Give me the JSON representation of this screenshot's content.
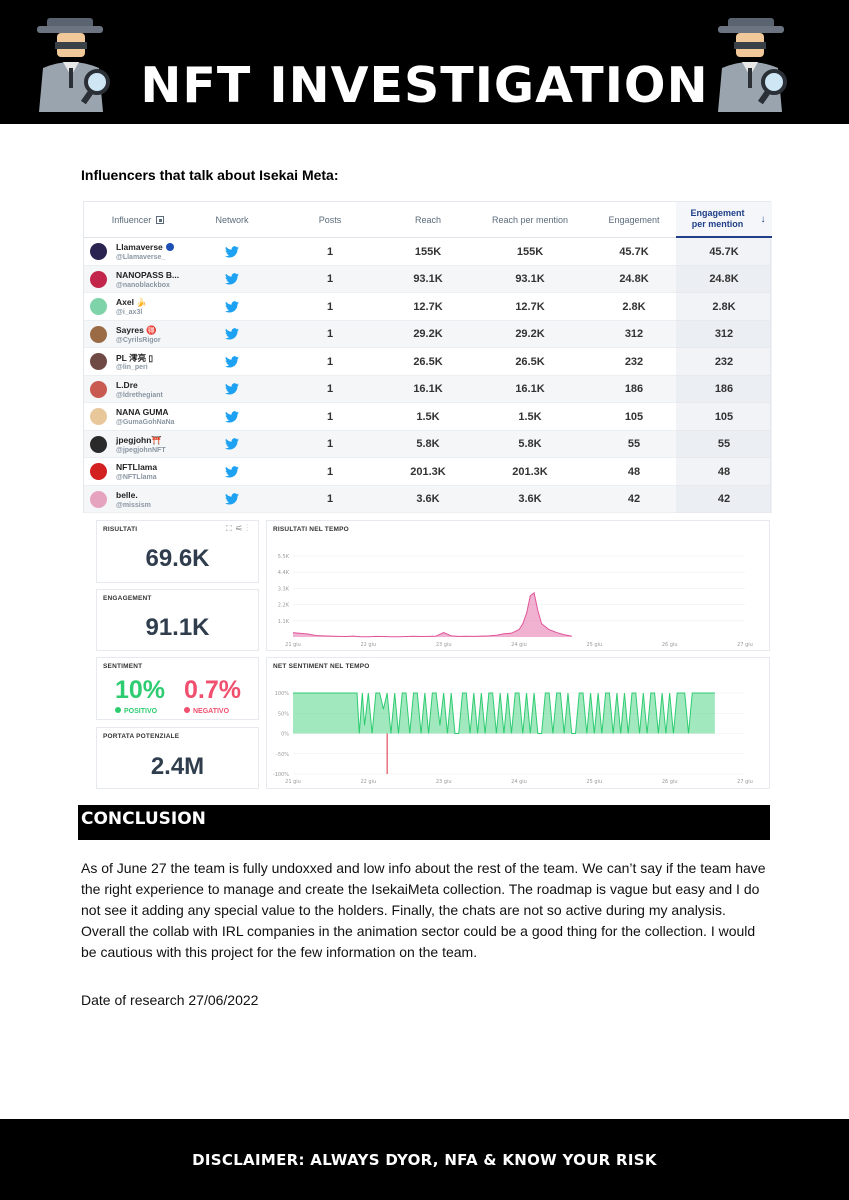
{
  "header": {
    "title": "NFT INVESTIGATION"
  },
  "section_heading": "Influencers that talk about Isekai Meta:",
  "influencers": {
    "columns": [
      "Influencer",
      "Network",
      "Posts",
      "Reach",
      "Reach per mention",
      "Engagement",
      "Engagement per mention"
    ],
    "rows": [
      {
        "name": "Llamaverse",
        "handle": "@Llamaverse_",
        "posts": "1",
        "reach": "155K",
        "reach_per_mention": "155K",
        "engagement": "45.7K",
        "engagement_per_mention": "45.7K",
        "avatar_color": "#2b2350"
      },
      {
        "name": "NANOPASS B...",
        "handle": "@nanoblackbox",
        "posts": "1",
        "reach": "93.1K",
        "reach_per_mention": "93.1K",
        "engagement": "24.8K",
        "engagement_per_mention": "24.8K",
        "avatar_color": "#c2264a"
      },
      {
        "name": "Axel 🍌",
        "handle": "@i_ax3l",
        "posts": "1",
        "reach": "12.7K",
        "reach_per_mention": "12.7K",
        "engagement": "2.8K",
        "engagement_per_mention": "2.8K",
        "avatar_color": "#7fd3a8"
      },
      {
        "name": "Sayres 🉐",
        "handle": "@CyrilsRigor",
        "posts": "1",
        "reach": "29.2K",
        "reach_per_mention": "29.2K",
        "engagement": "312",
        "engagement_per_mention": "312",
        "avatar_color": "#9a6b45"
      },
      {
        "name": "PL 澪亮 ▯",
        "handle": "@lin_peri",
        "posts": "1",
        "reach": "26.5K",
        "reach_per_mention": "26.5K",
        "engagement": "232",
        "engagement_per_mention": "232",
        "avatar_color": "#6f4a44"
      },
      {
        "name": "L.Dre",
        "handle": "@ldrethegiant",
        "posts": "1",
        "reach": "16.1K",
        "reach_per_mention": "16.1K",
        "engagement": "186",
        "engagement_per_mention": "186",
        "avatar_color": "#c85a52"
      },
      {
        "name": "NANA GUMA",
        "handle": "@GumaGohNaNa",
        "posts": "1",
        "reach": "1.5K",
        "reach_per_mention": "1.5K",
        "engagement": "105",
        "engagement_per_mention": "105",
        "avatar_color": "#e8c79a"
      },
      {
        "name": "jpegjohn⛩️",
        "handle": "@jpegjohnNFT",
        "posts": "1",
        "reach": "5.8K",
        "reach_per_mention": "5.8K",
        "engagement": "55",
        "engagement_per_mention": "55",
        "avatar_color": "#2a2a2a"
      },
      {
        "name": "NFTLlama",
        "handle": "@NFTLlama",
        "posts": "1",
        "reach": "201.3K",
        "reach_per_mention": "201.3K",
        "engagement": "48",
        "engagement_per_mention": "48",
        "avatar_color": "#d32020"
      },
      {
        "name": "belle.",
        "handle": "@missism",
        "posts": "1",
        "reach": "3.6K",
        "reach_per_mention": "3.6K",
        "engagement": "42",
        "engagement_per_mention": "42",
        "avatar_color": "#e6a3c0"
      }
    ]
  },
  "dashboard": {
    "risultati": {
      "label": "RISULTATI",
      "value": "69.6K"
    },
    "engagement": {
      "label": "ENGAGEMENT",
      "value": "91.1K"
    },
    "sentiment": {
      "label": "SENTIMENT",
      "positive": "10%",
      "negative": "0.7%",
      "positive_label": "POSITIVO",
      "negative_label": "NEGATIVO"
    },
    "portata": {
      "label": "PORTATA POTENZIALE",
      "value": "2.4M"
    },
    "chart_titles": {
      "results_over_time": "RISULTATI NEL TEMPO",
      "net_sentiment_over_time": "NET SENTIMENT NEL TEMPO"
    }
  },
  "chart_data": [
    {
      "type": "area",
      "title": "RISULTATI NEL TEMPO",
      "y_ticks": [
        "5.5K",
        "4.4K",
        "3.3K",
        "2.2K",
        "1.1K"
      ],
      "ylim": [
        0,
        5500
      ],
      "x_ticks": [
        "21 giu",
        "22 giu",
        "23 giu",
        "24 giu",
        "25 giu",
        "26 giu",
        "27 giu"
      ],
      "xlim": [
        0,
        6
      ],
      "color": "#e0559a",
      "x": [
        0,
        0.1,
        0.2,
        0.3,
        0.4,
        0.5,
        0.6,
        0.7,
        0.8,
        0.9,
        1.0,
        1.1,
        1.2,
        1.3,
        1.4,
        1.5,
        1.6,
        1.7,
        1.8,
        1.9,
        2.0,
        2.1,
        2.2,
        2.3,
        2.4,
        2.5,
        2.6,
        2.7,
        2.8,
        2.9,
        3.0,
        3.05,
        3.1,
        3.15,
        3.2,
        3.25,
        3.3,
        3.4,
        3.5,
        3.6,
        3.7
      ],
      "y": [
        300,
        250,
        200,
        100,
        80,
        60,
        40,
        30,
        60,
        20,
        20,
        40,
        30,
        20,
        20,
        30,
        50,
        30,
        40,
        60,
        300,
        80,
        40,
        50,
        40,
        60,
        80,
        120,
        220,
        260,
        500,
        900,
        1600,
        2800,
        3000,
        1800,
        900,
        500,
        300,
        150,
        60
      ]
    },
    {
      "type": "area",
      "title": "NET SENTIMENT NEL TEMPO",
      "y_ticks": [
        "100%",
        "50%",
        "0%",
        "-50%",
        "-100%"
      ],
      "ylim": [
        -100,
        100
      ],
      "x_ticks": [
        "21 giu",
        "22 giu",
        "23 giu",
        "24 giu",
        "25 giu",
        "26 giu",
        "27 giu"
      ],
      "xlim": [
        0,
        6
      ],
      "color": "#2ecc71",
      "negative_color": "#e0505e",
      "x": [
        0,
        0.85,
        0.88,
        0.92,
        0.95,
        1.0,
        1.05,
        1.1,
        1.15,
        1.2,
        1.25,
        1.3,
        1.35,
        1.4,
        1.45,
        1.5,
        1.55,
        1.6,
        1.65,
        1.7,
        1.75,
        1.8,
        1.85,
        1.9,
        1.95,
        2.0,
        2.05,
        2.1,
        2.15,
        2.2,
        2.25,
        2.3,
        2.35,
        2.4,
        2.45,
        2.5,
        2.55,
        2.6,
        2.65,
        2.7,
        2.75,
        2.8,
        2.85,
        2.9,
        2.95,
        3.0,
        3.05,
        3.1,
        3.15,
        3.2,
        3.25,
        3.3,
        3.35,
        3.4,
        3.45,
        3.5,
        3.55,
        3.6,
        3.65,
        3.7,
        3.75,
        3.8,
        3.85,
        3.9,
        3.95,
        4.0,
        4.05,
        4.1,
        4.15,
        4.2,
        4.25,
        4.3,
        4.35,
        4.4,
        4.45,
        4.5,
        4.55,
        4.6,
        4.65,
        4.7,
        4.75,
        4.8,
        4.85,
        4.9,
        4.95,
        5.0,
        5.05,
        5.1,
        5.2,
        5.25,
        5.3,
        5.35,
        5.5,
        5.6
      ],
      "y": [
        100,
        100,
        0,
        100,
        20,
        100,
        0,
        100,
        100,
        60,
        100,
        0,
        100,
        0,
        100,
        100,
        0,
        100,
        100,
        0,
        100,
        0,
        100,
        100,
        20,
        100,
        0,
        100,
        0,
        0,
        100,
        100,
        0,
        100,
        0,
        100,
        0,
        100,
        100,
        0,
        100,
        0,
        100,
        0,
        100,
        100,
        0,
        100,
        0,
        100,
        0,
        0,
        100,
        100,
        0,
        100,
        100,
        0,
        100,
        0,
        0,
        100,
        100,
        0,
        100,
        0,
        100,
        0,
        100,
        100,
        0,
        100,
        0,
        100,
        0,
        100,
        100,
        0,
        100,
        0,
        100,
        100,
        0,
        100,
        0,
        100,
        0,
        100,
        100,
        0,
        100,
        100,
        100,
        100
      ],
      "dip": {
        "x": 1.25,
        "y": -100
      }
    }
  ],
  "conclusion": {
    "title": "CONCLUSION",
    "text": "As of June 27 the team is fully undoxxed and low info about the rest of the team. We can’t say if the team have the right experience to manage and create the IsekaiMeta collection. The roadmap is vague but easy and I do not see it adding any special value to the holders. Finally, the chats are not so active during my analysis. Overall the collab with IRL companies in the animation sector could be a good thing for the collection. I would be cautious with this project for the few information on the team.",
    "date": "Date of research 27/06/2022"
  },
  "footer": {
    "text": "DISCLAIMER: ALWAYS DYOR, NFA & KNOW YOUR RISK"
  },
  "colors": {
    "header_bg": "#000000",
    "positive": "#2ecc71",
    "negative": "#f0506e",
    "twitter": "#1da1f2",
    "active_column": "#1f3f88"
  },
  "icons": [
    "detective-icon",
    "twitter-icon",
    "verified-icon",
    "sort-down-icon",
    "export-icon"
  ]
}
